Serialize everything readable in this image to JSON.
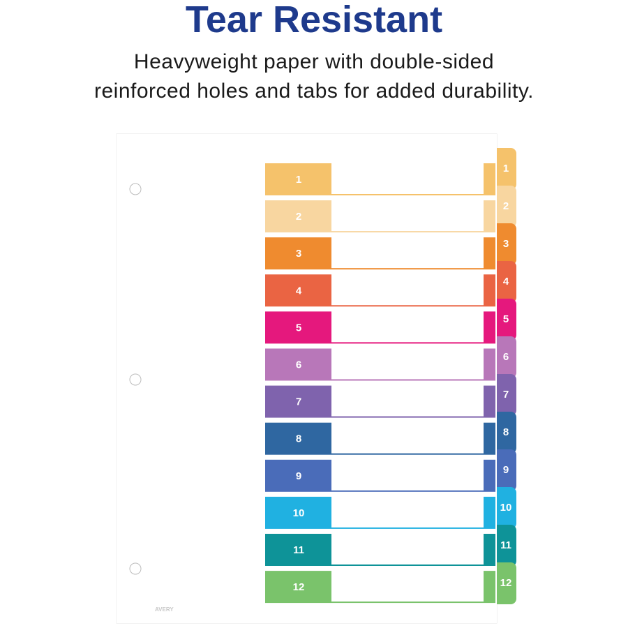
{
  "header": {
    "title": "Tear Resistant",
    "subtitle": [
      "Heavyweight paper with double-sided",
      "reinforced holes and tabs for added durability."
    ]
  },
  "tabs": [
    {
      "label": "1",
      "color": "#f5c26b"
    },
    {
      "label": "2",
      "color": "#f8d6a0"
    },
    {
      "label": "3",
      "color": "#ef8b2f"
    },
    {
      "label": "4",
      "color": "#ea6443"
    },
    {
      "label": "5",
      "color": "#e5187d"
    },
    {
      "label": "6",
      "color": "#b877b9"
    },
    {
      "label": "7",
      "color": "#7f63ad"
    },
    {
      "label": "8",
      "color": "#2f67a1"
    },
    {
      "label": "9",
      "color": "#4a6cb9"
    },
    {
      "label": "10",
      "color": "#20b1e1"
    },
    {
      "label": "11",
      "color": "#0e9398"
    },
    {
      "label": "12",
      "color": "#7ac36b"
    }
  ],
  "logo": "AVERY"
}
